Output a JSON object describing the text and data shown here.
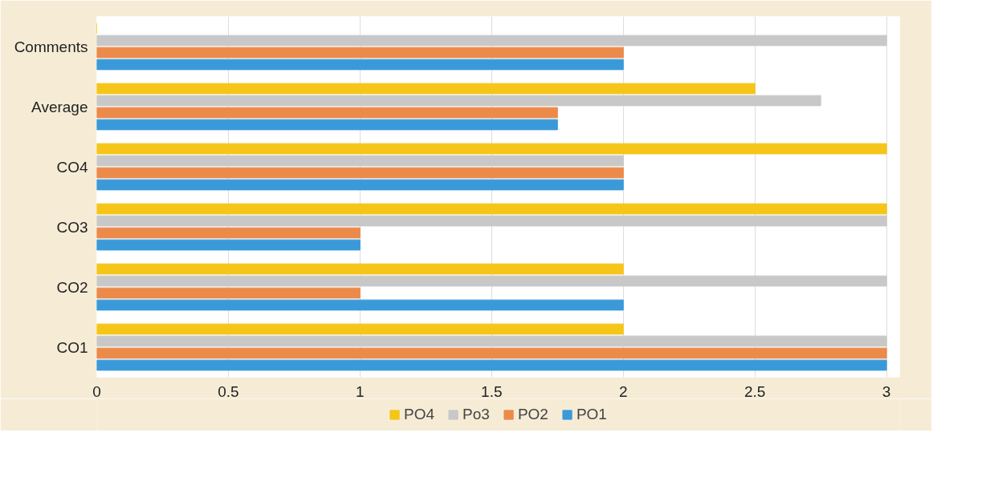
{
  "chart_data": {
    "type": "bar",
    "orientation": "horizontal",
    "categories": [
      "Comments",
      "Average",
      "CO4",
      "CO3",
      "CO2",
      "CO1"
    ],
    "series": [
      {
        "name": "PO4",
        "color": "#f5c518",
        "values": [
          0,
          2.5,
          3,
          3,
          2,
          2
        ]
      },
      {
        "name": "Po3",
        "color": "#c8c8c8",
        "values": [
          3,
          2.75,
          2,
          3,
          3,
          3
        ]
      },
      {
        "name": "PO2",
        "color": "#ec8a4a",
        "values": [
          2,
          1.75,
          2,
          1,
          1,
          3
        ]
      },
      {
        "name": "PO1",
        "color": "#3a9ad9",
        "values": [
          2,
          1.75,
          2,
          1,
          2,
          3
        ]
      }
    ],
    "xlim": [
      0,
      3.05
    ],
    "xticks": [
      0,
      0.5,
      1,
      1.5,
      2,
      2.5,
      3
    ],
    "grid": "x",
    "legend": "bottom"
  }
}
